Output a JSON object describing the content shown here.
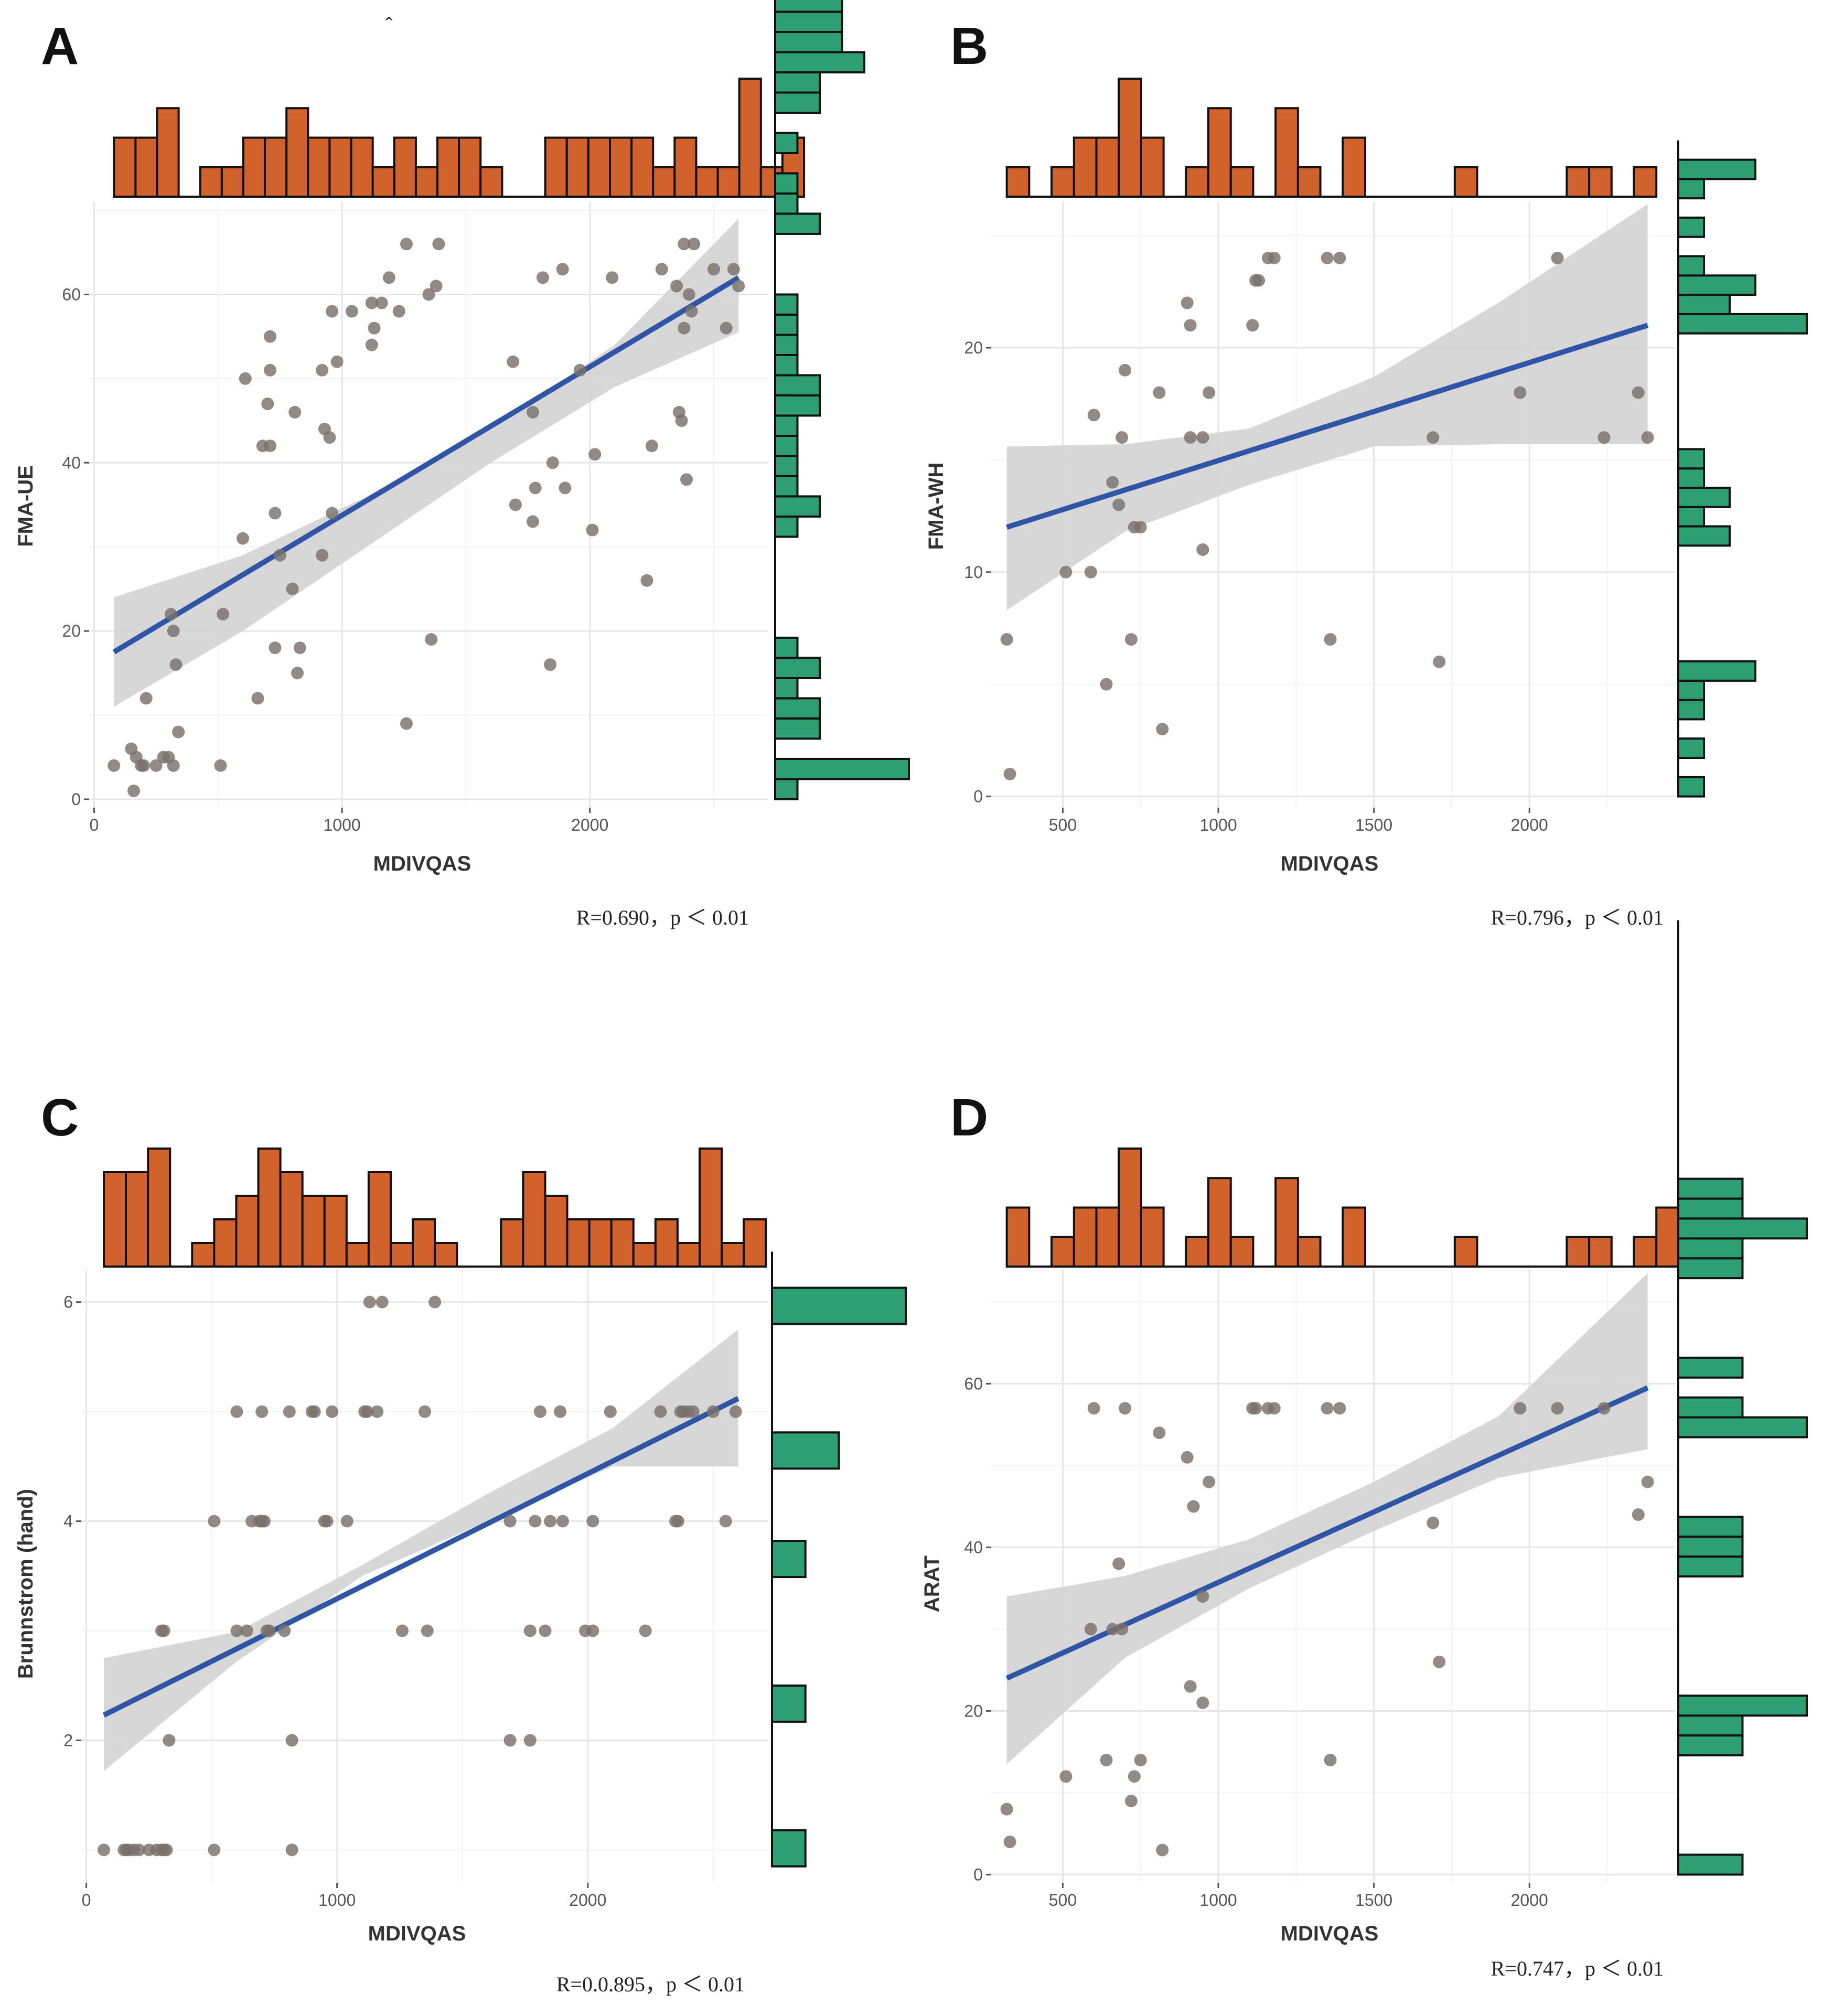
{
  "figure": {
    "stray_mark": "ˆ",
    "colors": {
      "point": "#7a706b",
      "fit_line": "#2f56a6",
      "band": "#d3d3d3",
      "top_hist": "#d2622b",
      "right_hist": "#2e9e74",
      "bar_stroke": "#111111"
    }
  },
  "chart_data": [
    {
      "type": "scatter",
      "panel_label": "A",
      "xlabel": "MDIVQAS",
      "ylabel": "FMA-UE",
      "xlim": [
        -20,
        2720
      ],
      "ylim": [
        -1,
        71
      ],
      "x_ticks": [
        0,
        1000,
        2000
      ],
      "y_ticks": [
        0,
        20,
        40,
        60
      ],
      "stats_text": "R=0.690，p ＜ 0.01",
      "fit": {
        "x0": 80,
        "y0": 17.5,
        "x1": 2600,
        "y1": 62
      },
      "band": {
        "x": [
          80,
          600,
          1100,
          1600,
          2100,
          2600
        ],
        "lo": [
          11,
          20,
          30,
          40,
          49,
          55.5
        ],
        "hi": [
          24,
          29,
          36,
          44,
          54,
          69
        ]
      },
      "top_hist": {
        "bin_start": 80,
        "bin_width": 87,
        "counts": [
          2,
          2,
          3,
          0,
          1,
          1,
          2,
          2,
          3,
          2,
          2,
          2,
          1,
          2,
          1,
          2,
          2,
          1,
          0,
          0,
          2,
          2,
          2,
          2,
          2,
          1,
          2,
          1,
          1,
          4,
          1,
          2
        ]
      },
      "right_hist": {
        "bin_start": 0,
        "bin_width": 2.4,
        "counts": [
          1,
          6,
          0,
          2,
          2,
          1,
          2,
          1,
          0,
          0,
          0,
          0,
          0,
          1,
          2,
          1,
          1,
          1,
          1,
          2,
          2,
          1,
          1,
          1,
          1,
          0,
          0,
          0,
          2,
          1,
          1,
          0,
          1,
          0,
          2,
          2,
          4,
          3,
          3,
          3,
          0,
          0,
          0,
          0,
          0
        ]
      },
      "points": [
        [
          80,
          4
        ],
        [
          150,
          6
        ],
        [
          160,
          1
        ],
        [
          170,
          5
        ],
        [
          190,
          4
        ],
        [
          200,
          4
        ],
        [
          210,
          12
        ],
        [
          250,
          4
        ],
        [
          280,
          5
        ],
        [
          300,
          5
        ],
        [
          310,
          22
        ],
        [
          320,
          4
        ],
        [
          320,
          20
        ],
        [
          330,
          16
        ],
        [
          340,
          8
        ],
        [
          510,
          4
        ],
        [
          520,
          22
        ],
        [
          600,
          31
        ],
        [
          610,
          50
        ],
        [
          660,
          12
        ],
        [
          680,
          42
        ],
        [
          700,
          47
        ],
        [
          710,
          42
        ],
        [
          710,
          51
        ],
        [
          710,
          55
        ],
        [
          730,
          18
        ],
        [
          730,
          34
        ],
        [
          750,
          29
        ],
        [
          800,
          25
        ],
        [
          810,
          46
        ],
        [
          820,
          15
        ],
        [
          830,
          18
        ],
        [
          920,
          29
        ],
        [
          920,
          51
        ],
        [
          930,
          44
        ],
        [
          950,
          43
        ],
        [
          960,
          34
        ],
        [
          960,
          58
        ],
        [
          980,
          52
        ],
        [
          1040,
          58
        ],
        [
          1120,
          54
        ],
        [
          1120,
          59
        ],
        [
          1130,
          56
        ],
        [
          1160,
          59
        ],
        [
          1190,
          62
        ],
        [
          1230,
          58
        ],
        [
          1260,
          9
        ],
        [
          1260,
          66
        ],
        [
          1350,
          60
        ],
        [
          1360,
          19
        ],
        [
          1380,
          61
        ],
        [
          1390,
          66
        ],
        [
          1690,
          52
        ],
        [
          1700,
          35
        ],
        [
          1770,
          33
        ],
        [
          1770,
          46
        ],
        [
          1780,
          37
        ],
        [
          1810,
          62
        ],
        [
          1840,
          16
        ],
        [
          1850,
          40
        ],
        [
          1890,
          63
        ],
        [
          1900,
          37
        ],
        [
          1960,
          51
        ],
        [
          2010,
          32
        ],
        [
          2020,
          41
        ],
        [
          2090,
          62
        ],
        [
          2230,
          26
        ],
        [
          2250,
          42
        ],
        [
          2290,
          63
        ],
        [
          2350,
          61
        ],
        [
          2360,
          46
        ],
        [
          2370,
          45
        ],
        [
          2380,
          56
        ],
        [
          2380,
          66
        ],
        [
          2390,
          38
        ],
        [
          2400,
          60
        ],
        [
          2410,
          58
        ],
        [
          2420,
          66
        ],
        [
          2500,
          63
        ],
        [
          2550,
          56
        ],
        [
          2580,
          63
        ],
        [
          2600,
          61
        ]
      ]
    },
    {
      "type": "scatter",
      "panel_label": "B",
      "xlabel": "MDIVQAS",
      "ylabel": "FMA-WH",
      "xlim": [
        270,
        2470
      ],
      "ylim": [
        -0.5,
        26.5
      ],
      "x_ticks": [
        500,
        1000,
        1500,
        2000
      ],
      "y_ticks": [
        0,
        10,
        20
      ],
      "stats_text": "R=0.796，p ＜ 0.01",
      "fit": {
        "x0": 320,
        "y0": 12,
        "x1": 2380,
        "y1": 21
      },
      "band": {
        "x": [
          320,
          700,
          1100,
          1500,
          1900,
          2380
        ],
        "lo": [
          8.3,
          11.8,
          13.9,
          15.6,
          15.7,
          15.7
        ],
        "hi": [
          15.6,
          15.7,
          16.4,
          18.7,
          22.0,
          26.4
        ]
      },
      "top_hist": {
        "bin_start": 320,
        "bin_width": 72,
        "counts": [
          1,
          0,
          1,
          2,
          2,
          4,
          2,
          0,
          1,
          3,
          1,
          0,
          3,
          1,
          0,
          2,
          0,
          0,
          0,
          0,
          1,
          0,
          0,
          0,
          0,
          1,
          1,
          0,
          1
        ]
      },
      "right_hist": {
        "bin_start": 0,
        "bin_width": 0.86,
        "counts": [
          1,
          0,
          1,
          0,
          1,
          1,
          3,
          0,
          0,
          0,
          0,
          0,
          0,
          2,
          1,
          2,
          1,
          1,
          0,
          0,
          0,
          0,
          0,
          0,
          5,
          2,
          3,
          1,
          0,
          1,
          0,
          1,
          3,
          0
        ]
      },
      "points": [
        [
          320,
          7
        ],
        [
          330,
          1
        ],
        [
          510,
          10
        ],
        [
          590,
          10
        ],
        [
          600,
          17
        ],
        [
          640,
          5
        ],
        [
          660,
          14
        ],
        [
          680,
          13
        ],
        [
          690,
          16
        ],
        [
          700,
          19
        ],
        [
          720,
          7
        ],
        [
          730,
          12
        ],
        [
          750,
          12
        ],
        [
          810,
          18
        ],
        [
          820,
          3
        ],
        [
          900,
          22
        ],
        [
          910,
          21
        ],
        [
          910,
          16
        ],
        [
          950,
          11
        ],
        [
          950,
          16
        ],
        [
          970,
          18
        ],
        [
          1110,
          21
        ],
        [
          1120,
          23
        ],
        [
          1130,
          23
        ],
        [
          1160,
          24
        ],
        [
          1180,
          24
        ],
        [
          1350,
          24
        ],
        [
          1360,
          7
        ],
        [
          1390,
          24
        ],
        [
          1690,
          16
        ],
        [
          1710,
          6
        ],
        [
          1970,
          18
        ],
        [
          2090,
          24
        ],
        [
          2240,
          16
        ],
        [
          2350,
          18
        ],
        [
          2380,
          16
        ]
      ]
    },
    {
      "type": "scatter",
      "panel_label": "C",
      "xlabel": "MDIVQAS",
      "ylabel": "Brunnstrom (hand)",
      "xlim": [
        -20,
        2720
      ],
      "ylim": [
        0.7,
        6.3
      ],
      "x_ticks": [
        0,
        1000,
        2000
      ],
      "y_ticks": [
        2,
        4,
        6
      ],
      "stats_text": "R=0.0.895，p ＜ 0.01",
      "fit": {
        "x0": 70,
        "y0": 2.23,
        "x1": 2600,
        "y1": 5.12
      },
      "band": {
        "x": [
          70,
          600,
          1100,
          1600,
          2100,
          2600
        ],
        "lo": [
          1.72,
          2.72,
          3.5,
          4.0,
          4.5,
          4.5
        ],
        "hi": [
          2.75,
          2.99,
          3.6,
          4.25,
          4.85,
          5.75
        ]
      },
      "top_hist": {
        "bin_start": 70,
        "bin_width": 88,
        "counts": [
          4,
          4,
          5,
          0,
          1,
          2,
          3,
          5,
          4,
          3,
          3,
          1,
          4,
          1,
          2,
          1,
          0,
          0,
          2,
          4,
          3,
          2,
          2,
          2,
          1,
          2,
          1,
          5,
          1,
          2
        ]
      },
      "right_hist": {
        "bin_start": 0.85,
        "bin_width": 0.33,
        "counts": [
          1,
          0,
          0,
          0,
          1,
          0,
          0,
          0,
          1,
          0,
          0,
          2,
          0,
          0,
          0,
          4,
          0
        ]
      },
      "points": [
        [
          70,
          1
        ],
        [
          150,
          1
        ],
        [
          160,
          1
        ],
        [
          170,
          1
        ],
        [
          190,
          1
        ],
        [
          210,
          1
        ],
        [
          250,
          1
        ],
        [
          280,
          1
        ],
        [
          300,
          1
        ],
        [
          310,
          1
        ],
        [
          320,
          1
        ],
        [
          330,
          2
        ],
        [
          300,
          3
        ],
        [
          310,
          3
        ],
        [
          510,
          1
        ],
        [
          510,
          4
        ],
        [
          600,
          3
        ],
        [
          600,
          5
        ],
        [
          640,
          3
        ],
        [
          660,
          4
        ],
        [
          690,
          4
        ],
        [
          700,
          4
        ],
        [
          700,
          5
        ],
        [
          710,
          4
        ],
        [
          720,
          3
        ],
        [
          730,
          3
        ],
        [
          790,
          3
        ],
        [
          810,
          5
        ],
        [
          820,
          1
        ],
        [
          820,
          2
        ],
        [
          900,
          5
        ],
        [
          910,
          5
        ],
        [
          950,
          4
        ],
        [
          960,
          4
        ],
        [
          980,
          5
        ],
        [
          1040,
          4
        ],
        [
          1110,
          5
        ],
        [
          1120,
          5
        ],
        [
          1130,
          6
        ],
        [
          1160,
          5
        ],
        [
          1180,
          6
        ],
        [
          1260,
          3
        ],
        [
          1350,
          5
        ],
        [
          1360,
          3
        ],
        [
          1390,
          6
        ],
        [
          1690,
          4
        ],
        [
          1690,
          2
        ],
        [
          1770,
          3
        ],
        [
          1770,
          2
        ],
        [
          1790,
          4
        ],
        [
          1810,
          5
        ],
        [
          1830,
          3
        ],
        [
          1850,
          4
        ],
        [
          1890,
          5
        ],
        [
          1900,
          4
        ],
        [
          1990,
          3
        ],
        [
          2020,
          3
        ],
        [
          2020,
          4
        ],
        [
          2090,
          5
        ],
        [
          2230,
          3
        ],
        [
          2290,
          5
        ],
        [
          2350,
          4
        ],
        [
          2360,
          4
        ],
        [
          2370,
          5
        ],
        [
          2380,
          5
        ],
        [
          2400,
          5
        ],
        [
          2420,
          5
        ],
        [
          2500,
          5
        ],
        [
          2550,
          4
        ],
        [
          2590,
          5
        ]
      ]
    },
    {
      "type": "scatter",
      "panel_label": "D",
      "xlabel": "MDIVQAS",
      "ylabel": "ARAT",
      "xlim": [
        270,
        2470
      ],
      "ylim": [
        -1,
        74
      ],
      "x_ticks": [
        500,
        1000,
        1500,
        2000
      ],
      "y_ticks": [
        0,
        20,
        40,
        60
      ],
      "stats_text": "R=0.747，p ＜ 0.01",
      "fit": {
        "x0": 320,
        "y0": 24,
        "x1": 2380,
        "y1": 59.5
      },
      "band": {
        "x": [
          320,
          700,
          1100,
          1500,
          1900,
          2380
        ],
        "lo": [
          13.5,
          26.5,
          35,
          42,
          48.5,
          52
        ],
        "hi": [
          34,
          36.5,
          41,
          48,
          56,
          73.5
        ]
      },
      "top_hist": {
        "bin_start": 320,
        "bin_width": 72,
        "counts": [
          2,
          0,
          1,
          2,
          2,
          4,
          2,
          0,
          1,
          3,
          1,
          0,
          3,
          1,
          0,
          2,
          0,
          0,
          0,
          0,
          1,
          0,
          0,
          0,
          0,
          1,
          1,
          0,
          1,
          2
        ]
      },
      "right_hist": {
        "bin_start": 0,
        "bin_width": 2.43,
        "counts": [
          1,
          0,
          0,
          0,
          0,
          0,
          1,
          1,
          2,
          0,
          0,
          0,
          0,
          0,
          0,
          1,
          1,
          1,
          0,
          0,
          0,
          0,
          2,
          1,
          0,
          1,
          0,
          0,
          0,
          0,
          1,
          1,
          2,
          1,
          1,
          0,
          0,
          0,
          0,
          0,
          0,
          0,
          0,
          0,
          0,
          0,
          0,
          0
        ]
      },
      "points": [
        [
          320,
          8
        ],
        [
          330,
          4
        ],
        [
          510,
          12
        ],
        [
          590,
          30
        ],
        [
          600,
          57
        ],
        [
          640,
          14
        ],
        [
          660,
          30
        ],
        [
          680,
          38
        ],
        [
          690,
          30
        ],
        [
          700,
          57
        ],
        [
          720,
          9
        ],
        [
          730,
          12
        ],
        [
          750,
          14
        ],
        [
          810,
          54
        ],
        [
          820,
          3
        ],
        [
          900,
          51
        ],
        [
          910,
          23
        ],
        [
          920,
          45
        ],
        [
          950,
          34
        ],
        [
          950,
          21
        ],
        [
          970,
          48
        ],
        [
          1110,
          57
        ],
        [
          1120,
          57
        ],
        [
          1160,
          57
        ],
        [
          1180,
          57
        ],
        [
          1350,
          57
        ],
        [
          1360,
          14
        ],
        [
          1390,
          57
        ],
        [
          1690,
          43
        ],
        [
          1710,
          26
        ],
        [
          1970,
          57
        ],
        [
          2090,
          57
        ],
        [
          2240,
          57
        ],
        [
          2350,
          44
        ],
        [
          2380,
          48
        ]
      ]
    }
  ]
}
